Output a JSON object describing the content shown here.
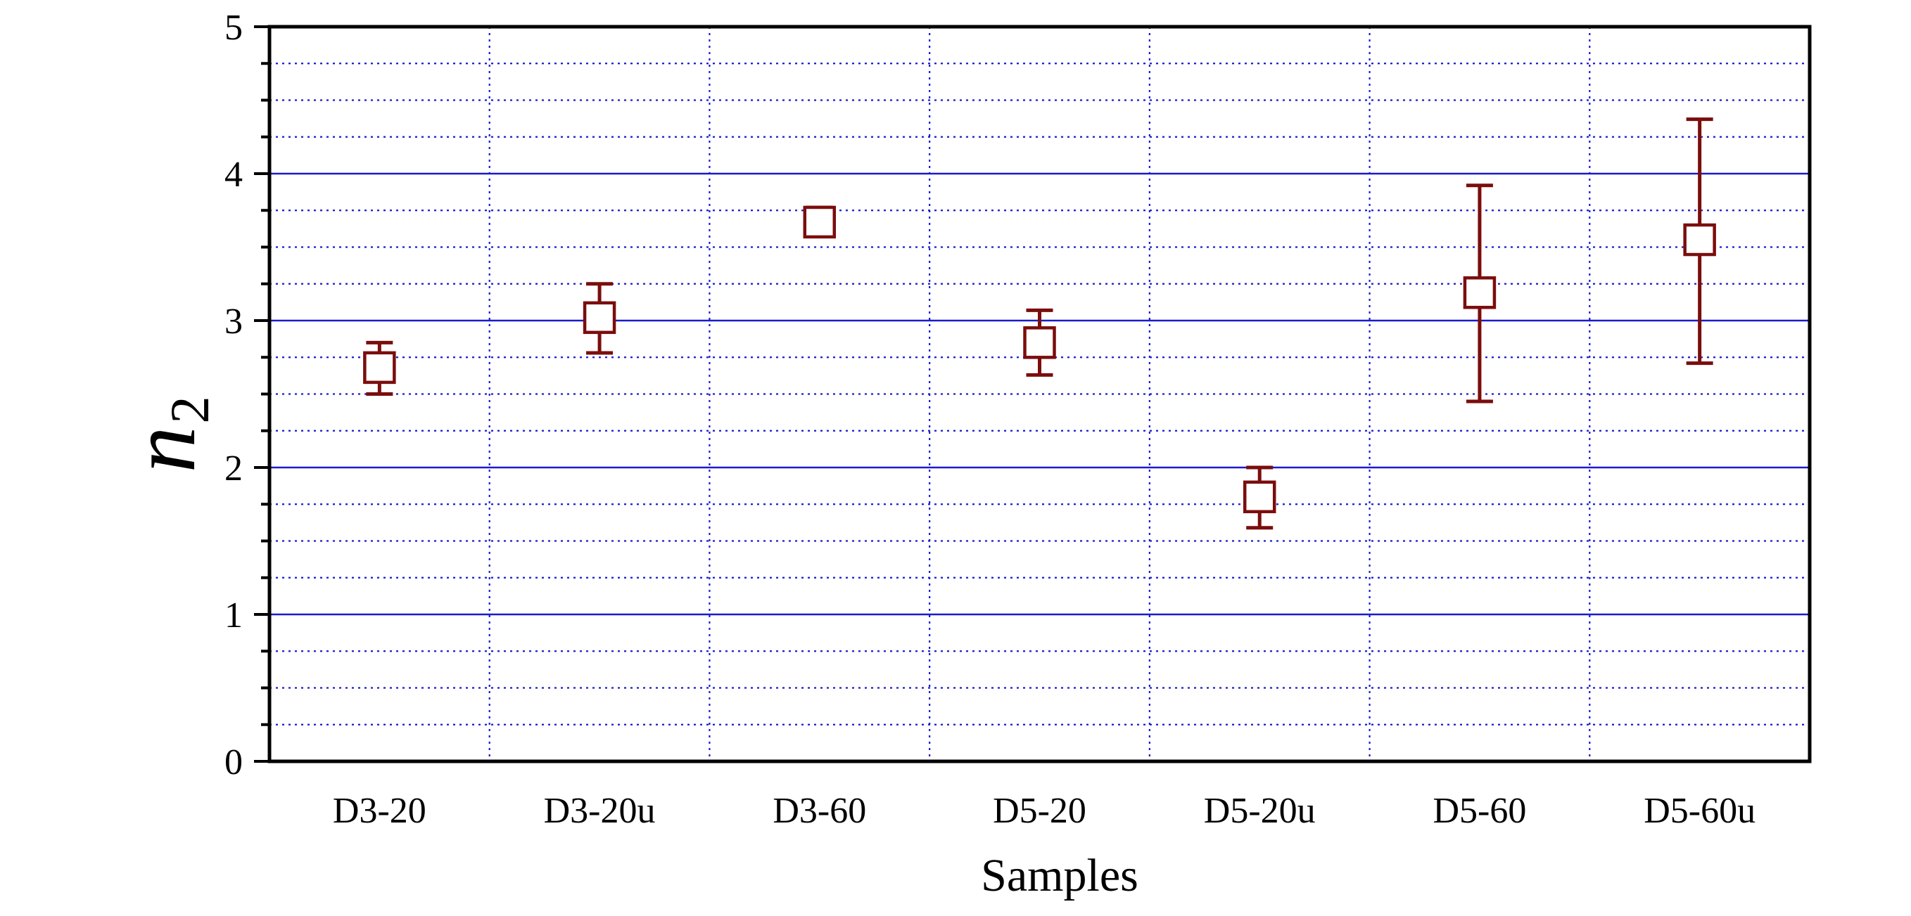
{
  "chart_data": {
    "type": "scatter",
    "title": "",
    "xlabel": "Samples",
    "ylabel": "n",
    "ylabel_subscript": "2",
    "categories": [
      "D3-20",
      "D3-20u",
      "D3-60",
      "D5-20",
      "D5-20u",
      "D5-60",
      "D5-60u"
    ],
    "ylim": [
      0,
      5
    ],
    "yticks": [
      "0",
      "1",
      "2",
      "3",
      "4",
      "5"
    ],
    "grid": {
      "major_y": true,
      "minor_y": true,
      "minor_y_step": 0.25,
      "x_category_dividers": true
    },
    "series": [
      {
        "marker": "open-square",
        "values": [
          2.68,
          3.02,
          3.67,
          2.85,
          1.8,
          3.19,
          3.55
        ],
        "error_low": [
          2.5,
          2.78,
          3.58,
          2.63,
          1.59,
          2.45,
          2.71
        ],
        "error_high": [
          2.85,
          3.25,
          3.77,
          3.07,
          2.0,
          3.92,
          4.37
        ]
      }
    ],
    "legend": "none"
  },
  "colors": {
    "series": "#7b0d0d",
    "major_grid": "#1a1acd",
    "minor_grid": "#1a1acd",
    "axis": "#000000",
    "background": "#ffffff"
  }
}
